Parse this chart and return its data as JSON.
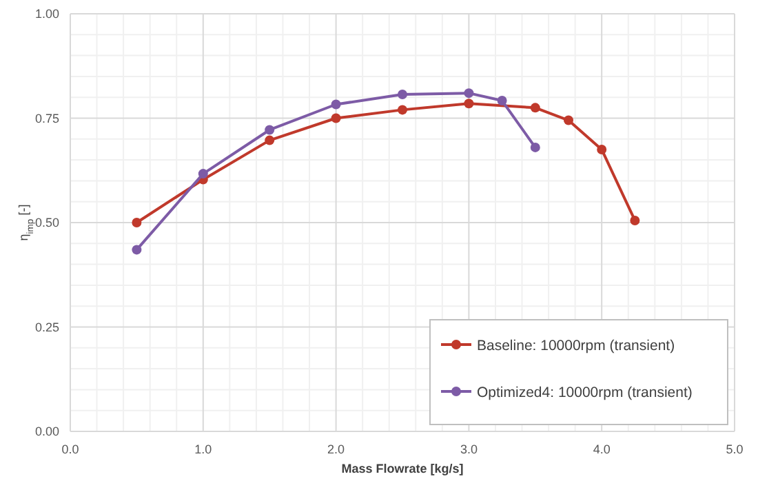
{
  "chart_data": {
    "type": "line",
    "xlabel": "Mass Flowrate [kg/s]",
    "ylabel": "η$_{imp}$ [-]",
    "xlim": [
      0,
      5
    ],
    "xticks": [
      {
        "value": 0,
        "label": "0.0"
      },
      {
        "value": 1,
        "label": "1.0"
      },
      {
        "value": 2,
        "label": "2.0"
      },
      {
        "value": 3,
        "label": "3.0"
      },
      {
        "value": 4,
        "label": "4.0"
      },
      {
        "value": 5,
        "label": "5.0"
      }
    ],
    "ylim": [
      0,
      1
    ],
    "yticks": [
      {
        "value": 0,
        "label": "0.00"
      },
      {
        "value": 0.25,
        "label": "0.25"
      },
      {
        "value": 0.5,
        "label": "0.50"
      },
      {
        "value": 0.75,
        "label": "0.75"
      },
      {
        "value": 1,
        "label": "1.00"
      }
    ],
    "grid": true,
    "legend": "bottom right",
    "marker": "circle",
    "line_style": "solid",
    "series": [
      {
        "name": "Baseline: 10000rpm (transient)",
        "color": "#c0392b",
        "x": [
          0.5,
          1.0,
          1.5,
          2.0,
          2.5,
          3.0,
          3.5,
          3.75,
          4.0,
          4.25
        ],
        "values": [
          0.5,
          0.603,
          0.697,
          0.75,
          0.77,
          0.785,
          0.775,
          0.745,
          0.675,
          0.505
        ]
      },
      {
        "name": "Optimized4: 10000rpm (transient)",
        "color": "#7d5ba6",
        "x": [
          0.5,
          1.0,
          1.5,
          2.0,
          2.5,
          3.0,
          3.25,
          3.5
        ],
        "values": [
          0.435,
          0.617,
          0.722,
          0.783,
          0.807,
          0.81,
          0.792,
          0.68
        ]
      }
    ]
  }
}
